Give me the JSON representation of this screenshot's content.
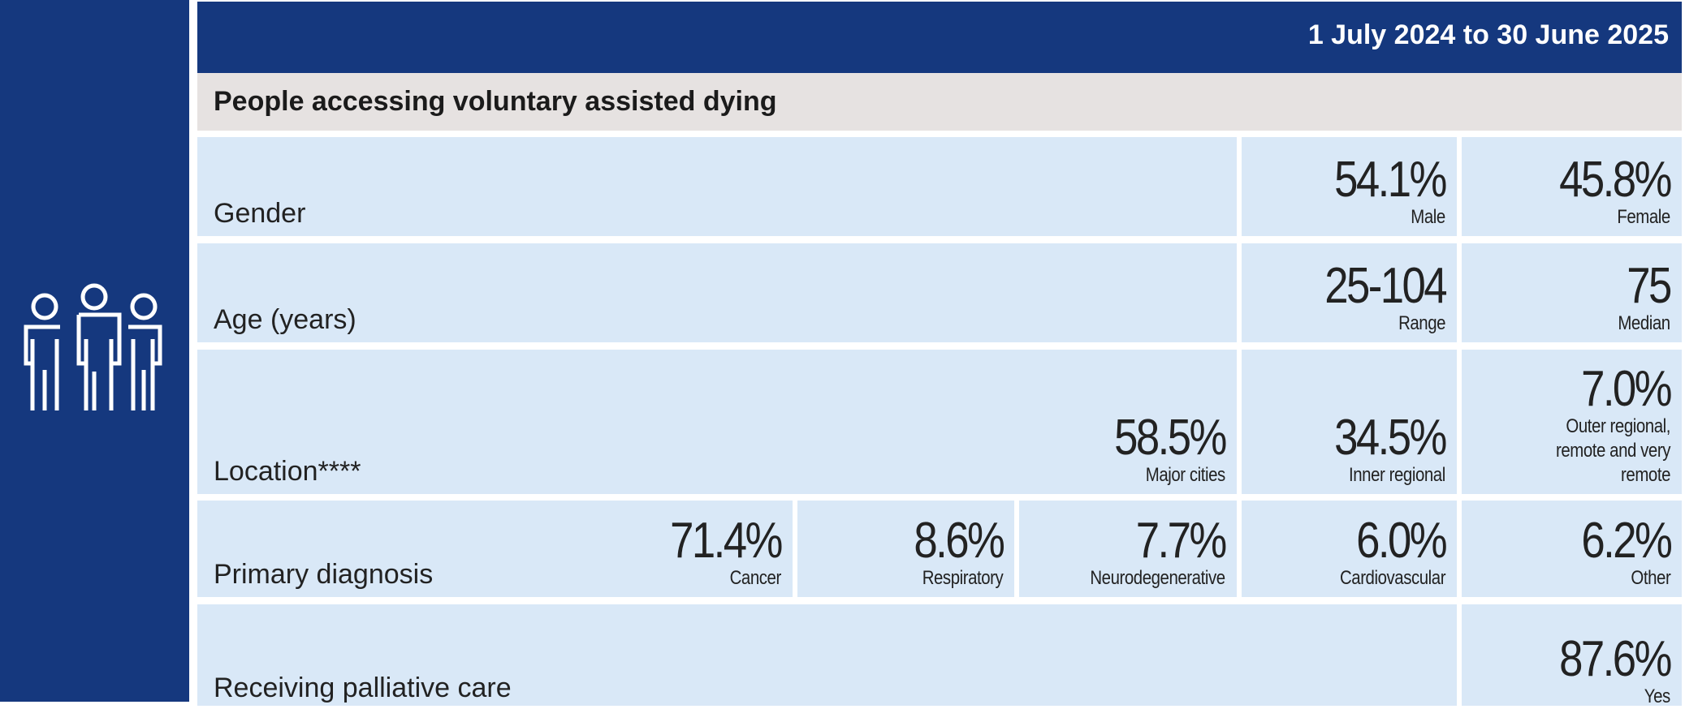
{
  "header": {
    "period": "1 July 2024 to 30 June 2025"
  },
  "section_title": "People accessing voluntary assisted dying",
  "colors": {
    "navy": "#15387e",
    "cell": "#d9e8f7",
    "title_bg": "#e6e2e1"
  },
  "icon": "people-group-icon",
  "rows": {
    "gender": {
      "label": "Gender",
      "values": [
        {
          "value": "54.1%",
          "label": "Male"
        },
        {
          "value": "45.8%",
          "label": "Female"
        }
      ]
    },
    "age": {
      "label": "Age (years)",
      "values": [
        {
          "value": "25-104",
          "label": "Range"
        },
        {
          "value": "75",
          "label": "Median"
        }
      ]
    },
    "location": {
      "label": "Location****",
      "values": [
        {
          "value": "58.5%",
          "label": "Major cities"
        },
        {
          "value": "34.5%",
          "label": "Inner regional"
        },
        {
          "value": "7.0%",
          "label": "Outer regional, remote and very remote"
        }
      ]
    },
    "diagnosis": {
      "label": "Primary diagnosis",
      "values": [
        {
          "value": "71.4%",
          "label": "Cancer"
        },
        {
          "value": "8.6%",
          "label": "Respiratory"
        },
        {
          "value": "7.7%",
          "label": "Neurodegenerative"
        },
        {
          "value": "6.0%",
          "label": "Cardiovascular"
        },
        {
          "value": "6.2%",
          "label": "Other"
        }
      ]
    },
    "palliative": {
      "label": "Receiving palliative care",
      "values": [
        {
          "value": "87.6%",
          "label": "Yes"
        }
      ]
    }
  }
}
